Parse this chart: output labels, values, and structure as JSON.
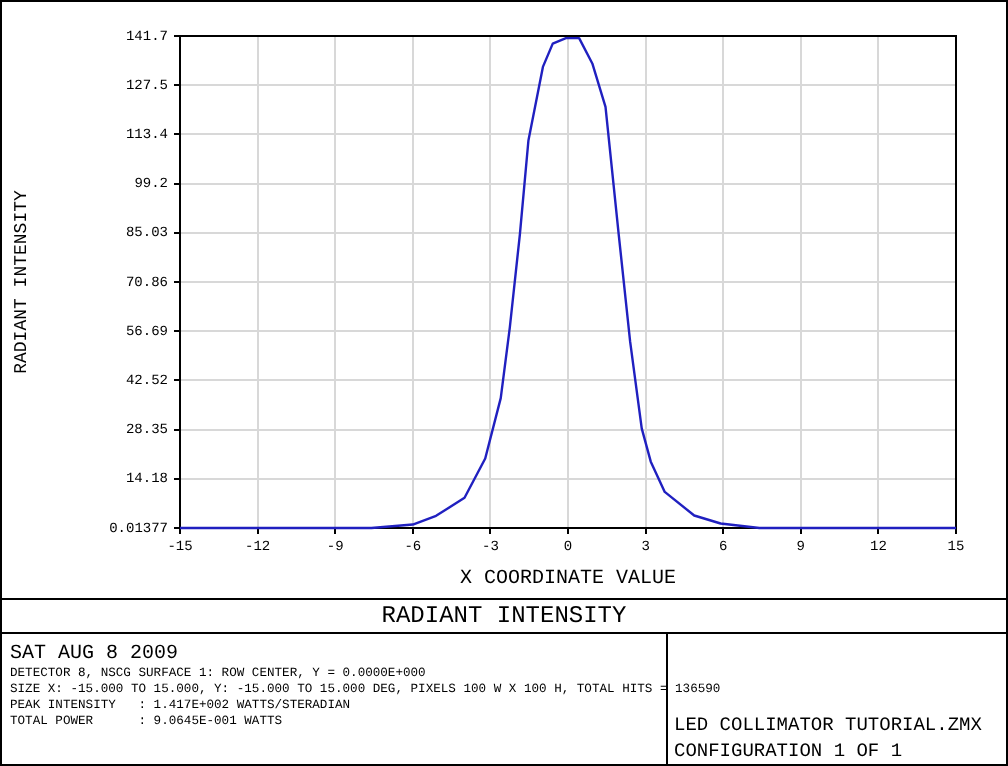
{
  "chart_data": {
    "type": "line",
    "title": "RADIANT INTENSITY",
    "xlabel": "X COORDINATE VALUE",
    "ylabel": "RADIANT INTENSITY",
    "x": [
      -15,
      -12,
      -9,
      -7.6,
      -6,
      -5.1,
      -4,
      -3.2,
      -2.6,
      -2.25,
      -1.86,
      -1.53,
      -0.97,
      -0.59,
      -0.08,
      0.43,
      0.94,
      1.45,
      1.96,
      2.4,
      2.85,
      3.2,
      3.74,
      4.88,
      5.9,
      7.4,
      9,
      12,
      15
    ],
    "series": [
      {
        "color": "#2020c0",
        "values": [
          0,
          0,
          0,
          0,
          1,
          3.5,
          8.7,
          20,
          37.4,
          57.7,
          84.6,
          111.6,
          132.8,
          139.5,
          141.1,
          141.1,
          133.8,
          121.3,
          84.6,
          53.8,
          28.7,
          19.1,
          10.4,
          3.6,
          1.3,
          0,
          0,
          0,
          0
        ]
      }
    ],
    "xlim": [
      -15,
      15
    ],
    "xticks": [
      -15,
      -12,
      -9,
      -6,
      -3,
      0,
      3,
      6,
      9,
      12,
      15
    ],
    "ylim": [
      0,
      141.7
    ],
    "yticks": [
      0.01377,
      14.18,
      28.35,
      42.52,
      56.69,
      70.86,
      85.03,
      99.2,
      113.4,
      127.5,
      141.7
    ],
    "grid": true,
    "marker": "none",
    "line_style": "solid",
    "annotations": [
      "SAT AUG 8 2009",
      "DETECTOR 8, NSCG SURFACE 1: ROW CENTER, Y = 0.0000E+000",
      "SIZE X: -15.000 TO 15.000, Y: -15.000 TO 15.000 DEG, PIXELS 100 W X 100 H, TOTAL HITS = 136590",
      "PEAK INTENSITY   : 1.417E+002 WATTS/STERADIAN",
      "TOTAL POWER      : 9.0645E-001 WATTS",
      "LED COLLIMATOR TUTORIAL.ZMX",
      "CONFIGURATION 1 OF 1"
    ]
  }
}
